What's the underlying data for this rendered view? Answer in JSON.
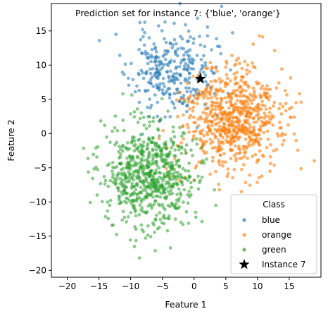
{
  "chart_data": {
    "type": "scatter",
    "title": "Prediction set for instance 7: {'blue', 'orange'}",
    "xlabel": "Feature 1",
    "ylabel": "Feature 2",
    "xlim": [
      -22.5,
      20
    ],
    "ylim": [
      -21,
      19
    ],
    "xticks": [
      -20,
      -15,
      -10,
      -5,
      0,
      5,
      10,
      15
    ],
    "yticks": [
      -20,
      -15,
      -10,
      -5,
      0,
      5,
      10,
      15
    ],
    "grid": false,
    "legend": {
      "title": "Class",
      "placement": "lower right",
      "entries": [
        "blue",
        "orange",
        "green",
        "Instance 7"
      ]
    },
    "series": [
      {
        "name": "blue",
        "color": "#1f77b4",
        "marker": "circle",
        "alpha": 0.55,
        "center": [
          -3.5,
          9
        ],
        "spread": [
          3.3,
          3.2
        ],
        "count": 300,
        "seed": 11
      },
      {
        "name": "orange",
        "color": "#ff7f0e",
        "marker": "circle",
        "alpha": 0.6,
        "center": [
          6,
          2
        ],
        "spread": [
          3.8,
          3.7
        ],
        "count": 700,
        "seed": 23
      },
      {
        "name": "green",
        "color": "#2ca02c",
        "marker": "circle",
        "alpha": 0.55,
        "center": [
          -7,
          -6
        ],
        "spread": [
          3.6,
          3.8
        ],
        "count": 700,
        "seed": 37
      }
    ],
    "highlight": {
      "name": "Instance 7",
      "x": 1.0,
      "y": 8.0,
      "marker": "star",
      "color": "#000000"
    }
  }
}
